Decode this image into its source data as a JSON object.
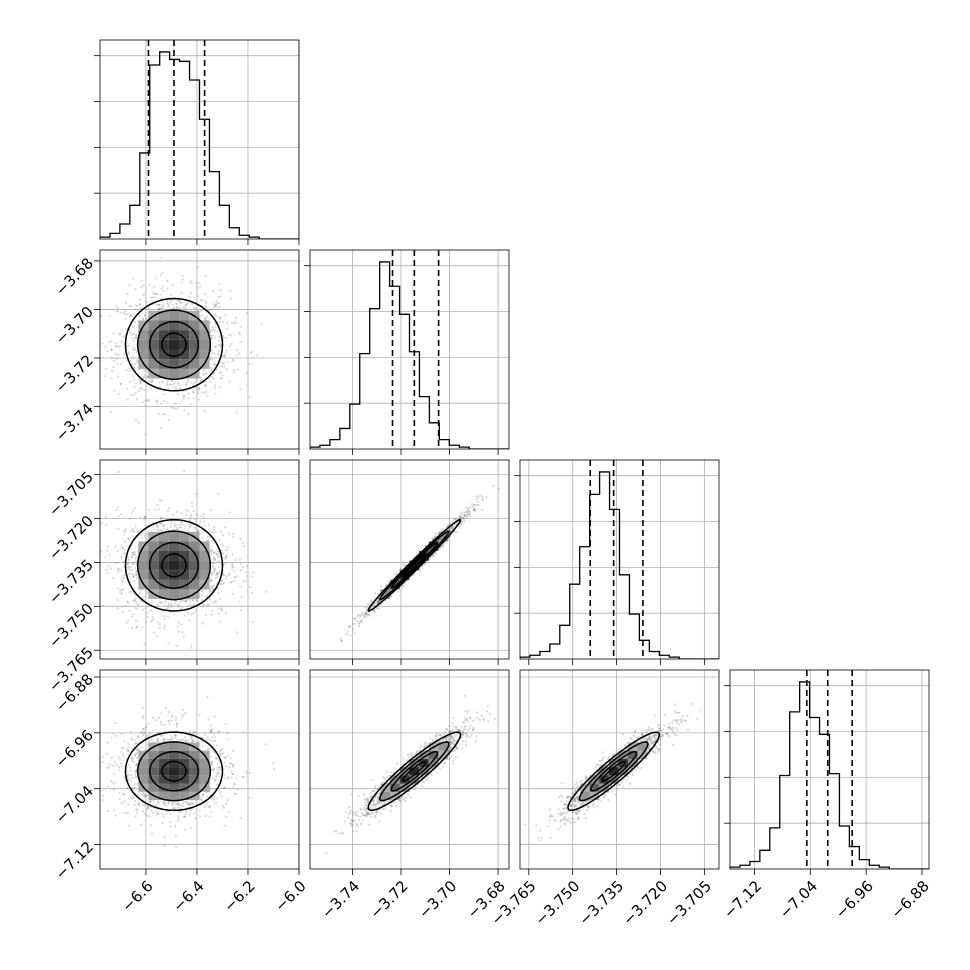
{
  "chart_data": {
    "type": "corner",
    "grid": true,
    "parameters": [
      {
        "mean": -6.49,
        "sigma": 0.095,
        "range": [
          -6.78,
          -6.0
        ],
        "quantiles": [
          -6.59,
          -6.49,
          -6.37
        ],
        "ticks": [
          -6.6,
          -6.4,
          -6.2,
          -6.0
        ],
        "tick_labels": [
          "−6.6",
          "−6.4",
          "−6.2",
          "−6.0"
        ],
        "hist": [
          1,
          3,
          8,
          18,
          46,
          93,
          100,
          96,
          95,
          85,
          64,
          36,
          18,
          6,
          2,
          1,
          0,
          0,
          0,
          0
        ]
      },
      {
        "mean": -3.7145,
        "sigma": 0.0095,
        "range": [
          -3.7575,
          -3.6755
        ],
        "quantiles": [
          -3.7235,
          -3.7145,
          -3.7045
        ],
        "ticks": [
          -3.74,
          -3.72,
          -3.7,
          -3.68
        ],
        "tick_labels": [
          "−3.74",
          "−3.72",
          "−3.70",
          "−3.68"
        ],
        "hist": [
          1,
          2,
          5,
          11,
          24,
          51,
          75,
          100,
          87,
          72,
          52,
          28,
          14,
          5,
          2,
          1,
          0,
          0,
          0,
          0
        ]
      },
      {
        "mean": -3.736,
        "sigma": 0.0078,
        "range": [
          -3.768,
          -3.7
        ],
        "quantiles": [
          -3.744,
          -3.736,
          -3.726
        ],
        "ticks": [
          -3.765,
          -3.75,
          -3.735,
          -3.72,
          -3.705
        ],
        "tick_labels": [
          "−3.765",
          "−3.750",
          "−3.735",
          "−3.720",
          "−3.705"
        ],
        "hist": [
          1,
          2,
          4,
          8,
          18,
          40,
          60,
          88,
          100,
          80,
          45,
          24,
          10,
          4,
          2,
          1,
          0,
          0,
          0,
          0
        ]
      },
      {
        "mean": -7.015,
        "sigma": 0.028,
        "range": [
          -7.155,
          -6.87
        ],
        "quantiles": [
          -7.045,
          -7.015,
          -6.98
        ],
        "ticks": [
          -7.12,
          -7.04,
          -6.96,
          -6.88
        ],
        "tick_labels": [
          "−7.12",
          "−7.04",
          "−6.96",
          "−6.88"
        ],
        "hist": [
          1,
          2,
          4,
          10,
          22,
          50,
          84,
          100,
          81,
          72,
          51,
          23,
          12,
          5,
          2,
          1,
          0,
          0,
          0,
          0
        ]
      }
    ],
    "correlations": [
      [
        1,
        0.0,
        0.0,
        0.0
      ],
      [
        0.0,
        1,
        0.99,
        0.93
      ],
      [
        0.0,
        0.99,
        1,
        0.93
      ],
      [
        0.0,
        0.93,
        0.93,
        1
      ]
    ],
    "contour_levels_sigma": [
      0.5,
      1.0,
      1.5,
      2.0
    ]
  }
}
